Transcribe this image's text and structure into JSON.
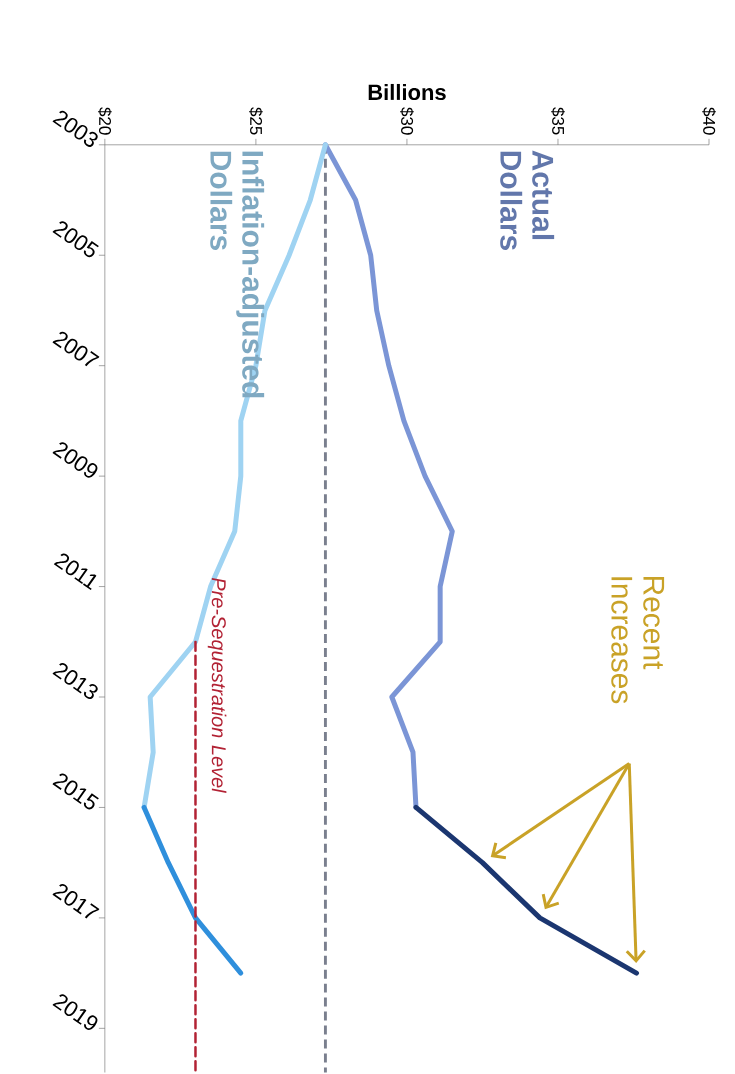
{
  "chart_data": {
    "type": "line",
    "xlabel": "Billions",
    "xlim": [
      20,
      40
    ],
    "xticks": [
      {
        "value": 20,
        "label": "$20"
      },
      {
        "value": 25,
        "label": "$25"
      },
      {
        "value": 30,
        "label": "$30"
      },
      {
        "value": 35,
        "label": "$35"
      },
      {
        "value": 40,
        "label": "$40"
      }
    ],
    "ylim": [
      2019.8,
      2003
    ],
    "yticks": [
      2003,
      2005,
      2007,
      2009,
      2011,
      2013,
      2015,
      2017,
      2019
    ],
    "series": [
      {
        "name": "Actual Dollars",
        "color": "#7b95d6",
        "x": [
          27.3,
          28.3,
          28.8,
          29.0,
          29.4,
          29.9,
          30.6,
          31.5,
          31.1,
          31.1,
          29.5,
          30.2,
          30.3
        ],
        "values": [
          2003,
          2004,
          2005,
          2006,
          2007,
          2008,
          2009,
          2010,
          2011,
          2012,
          2013,
          2014,
          2015
        ]
      },
      {
        "color": "#1b3670",
        "x": [
          30.3,
          32.5,
          34.4,
          37.6
        ],
        "values": [
          2015,
          2016,
          2017,
          2018
        ]
      },
      {
        "name": "Inflation-adjusted Dollars",
        "color": "#9fd3f2",
        "x": [
          27.3,
          26.8,
          26.1,
          25.3,
          25.0,
          24.5,
          24.5,
          24.3,
          23.5,
          23.0,
          21.5,
          21.6,
          21.3
        ],
        "values": [
          2003,
          2004,
          2005,
          2006,
          2007,
          2008,
          2009,
          2010,
          2011,
          2012,
          2013,
          2014,
          2015
        ]
      },
      {
        "color": "#2f8fdc",
        "x": [
          21.3,
          22.1,
          23.0,
          24.5
        ],
        "values": [
          2015,
          2016,
          2017,
          2018
        ]
      },
      {
        "name": "Pre-Sequestration Level",
        "color": "#b22234",
        "line_style": "dashed",
        "x": [
          23.0,
          23.0
        ],
        "values": [
          2012,
          2019.8
        ]
      }
    ],
    "ref_lines": [
      {
        "axis": "x",
        "value": 27.3,
        "color": "#7a7f8e",
        "line_style": "dashed"
      }
    ],
    "annotations": [
      "Recent Increases"
    ]
  }
}
